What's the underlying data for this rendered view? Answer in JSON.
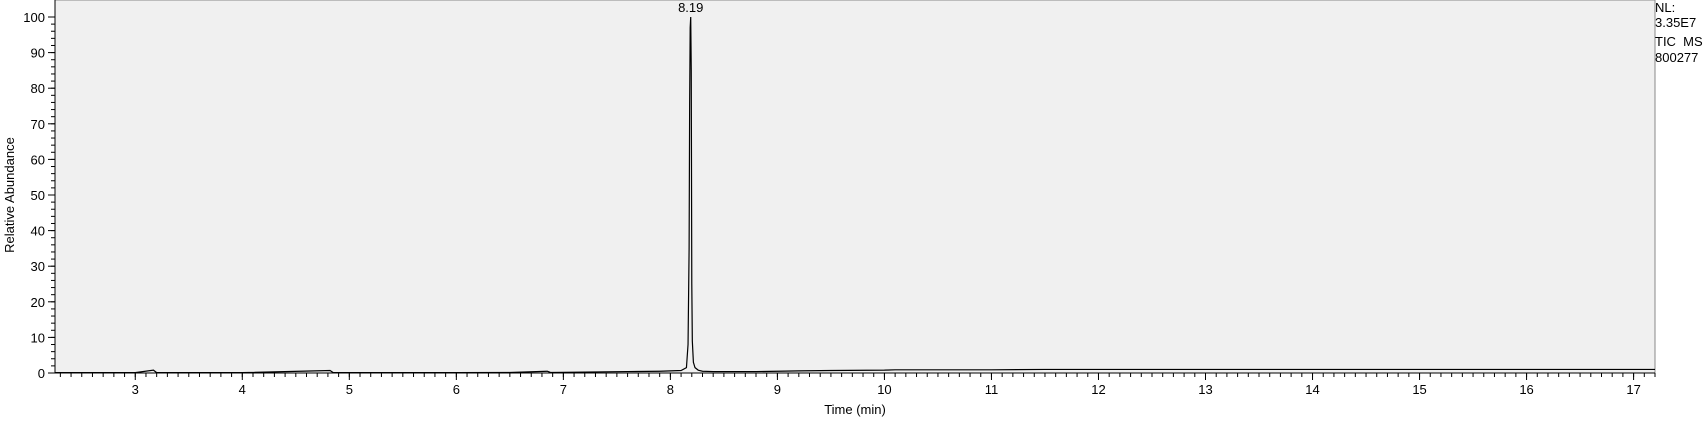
{
  "chart_data": {
    "type": "line",
    "title": "",
    "xlabel": "Time (min)",
    "ylabel": "Relative Abundance",
    "xlim": [
      2.25,
      17.2
    ],
    "ylim": [
      0,
      100
    ],
    "x_ticks": [
      3,
      4,
      5,
      6,
      7,
      8,
      9,
      10,
      11,
      12,
      13,
      14,
      15,
      16,
      17
    ],
    "y_ticks": [
      0,
      10,
      20,
      30,
      40,
      50,
      60,
      70,
      80,
      90,
      100
    ],
    "grid": false,
    "background": "#f0f0f0",
    "line_color": "#000000",
    "peak_annotations": [
      {
        "x": 8.19,
        "y": 100,
        "label": "8.19"
      }
    ],
    "series": [
      {
        "x": [
          2.25,
          3.0,
          3.17,
          3.2,
          4.0,
          4.82,
          4.85,
          5.5,
          6.0,
          6.5,
          6.85,
          6.88,
          7.0,
          7.3,
          7.6,
          7.9,
          8.1,
          8.15,
          8.165,
          8.175,
          8.18,
          8.185,
          8.19,
          8.195,
          8.2,
          8.205,
          8.215,
          8.23,
          8.26,
          8.3,
          8.4,
          8.6,
          8.8,
          9.0,
          9.2,
          9.5,
          10.0,
          10.1,
          10.5,
          11.0,
          11.5,
          12.0,
          12.5,
          13.0,
          13.5,
          14.0,
          14.5,
          15.0,
          15.5,
          16.0,
          16.5,
          17.0,
          17.2
        ],
        "y": [
          0.1,
          0.1,
          0.8,
          0.1,
          0.1,
          0.7,
          0.1,
          0.1,
          0.1,
          0.15,
          0.5,
          0.15,
          0.2,
          0.3,
          0.4,
          0.5,
          0.7,
          1.5,
          8,
          35,
          76,
          97,
          100,
          85,
          25,
          9,
          3,
          1.5,
          0.8,
          0.5,
          0.4,
          0.4,
          0.4,
          0.5,
          0.6,
          0.7,
          0.8,
          0.9,
          0.9,
          0.9,
          1.0,
          1.0,
          1.0,
          1.0,
          1.0,
          1.0,
          1.0,
          1.0,
          1.0,
          1.0,
          1.0,
          1.0,
          1.0
        ]
      }
    ]
  },
  "info": {
    "nl_label": "NL:",
    "nl_value": "3.35E7",
    "trace_label": "TIC  MS",
    "sample_id": "800277"
  }
}
